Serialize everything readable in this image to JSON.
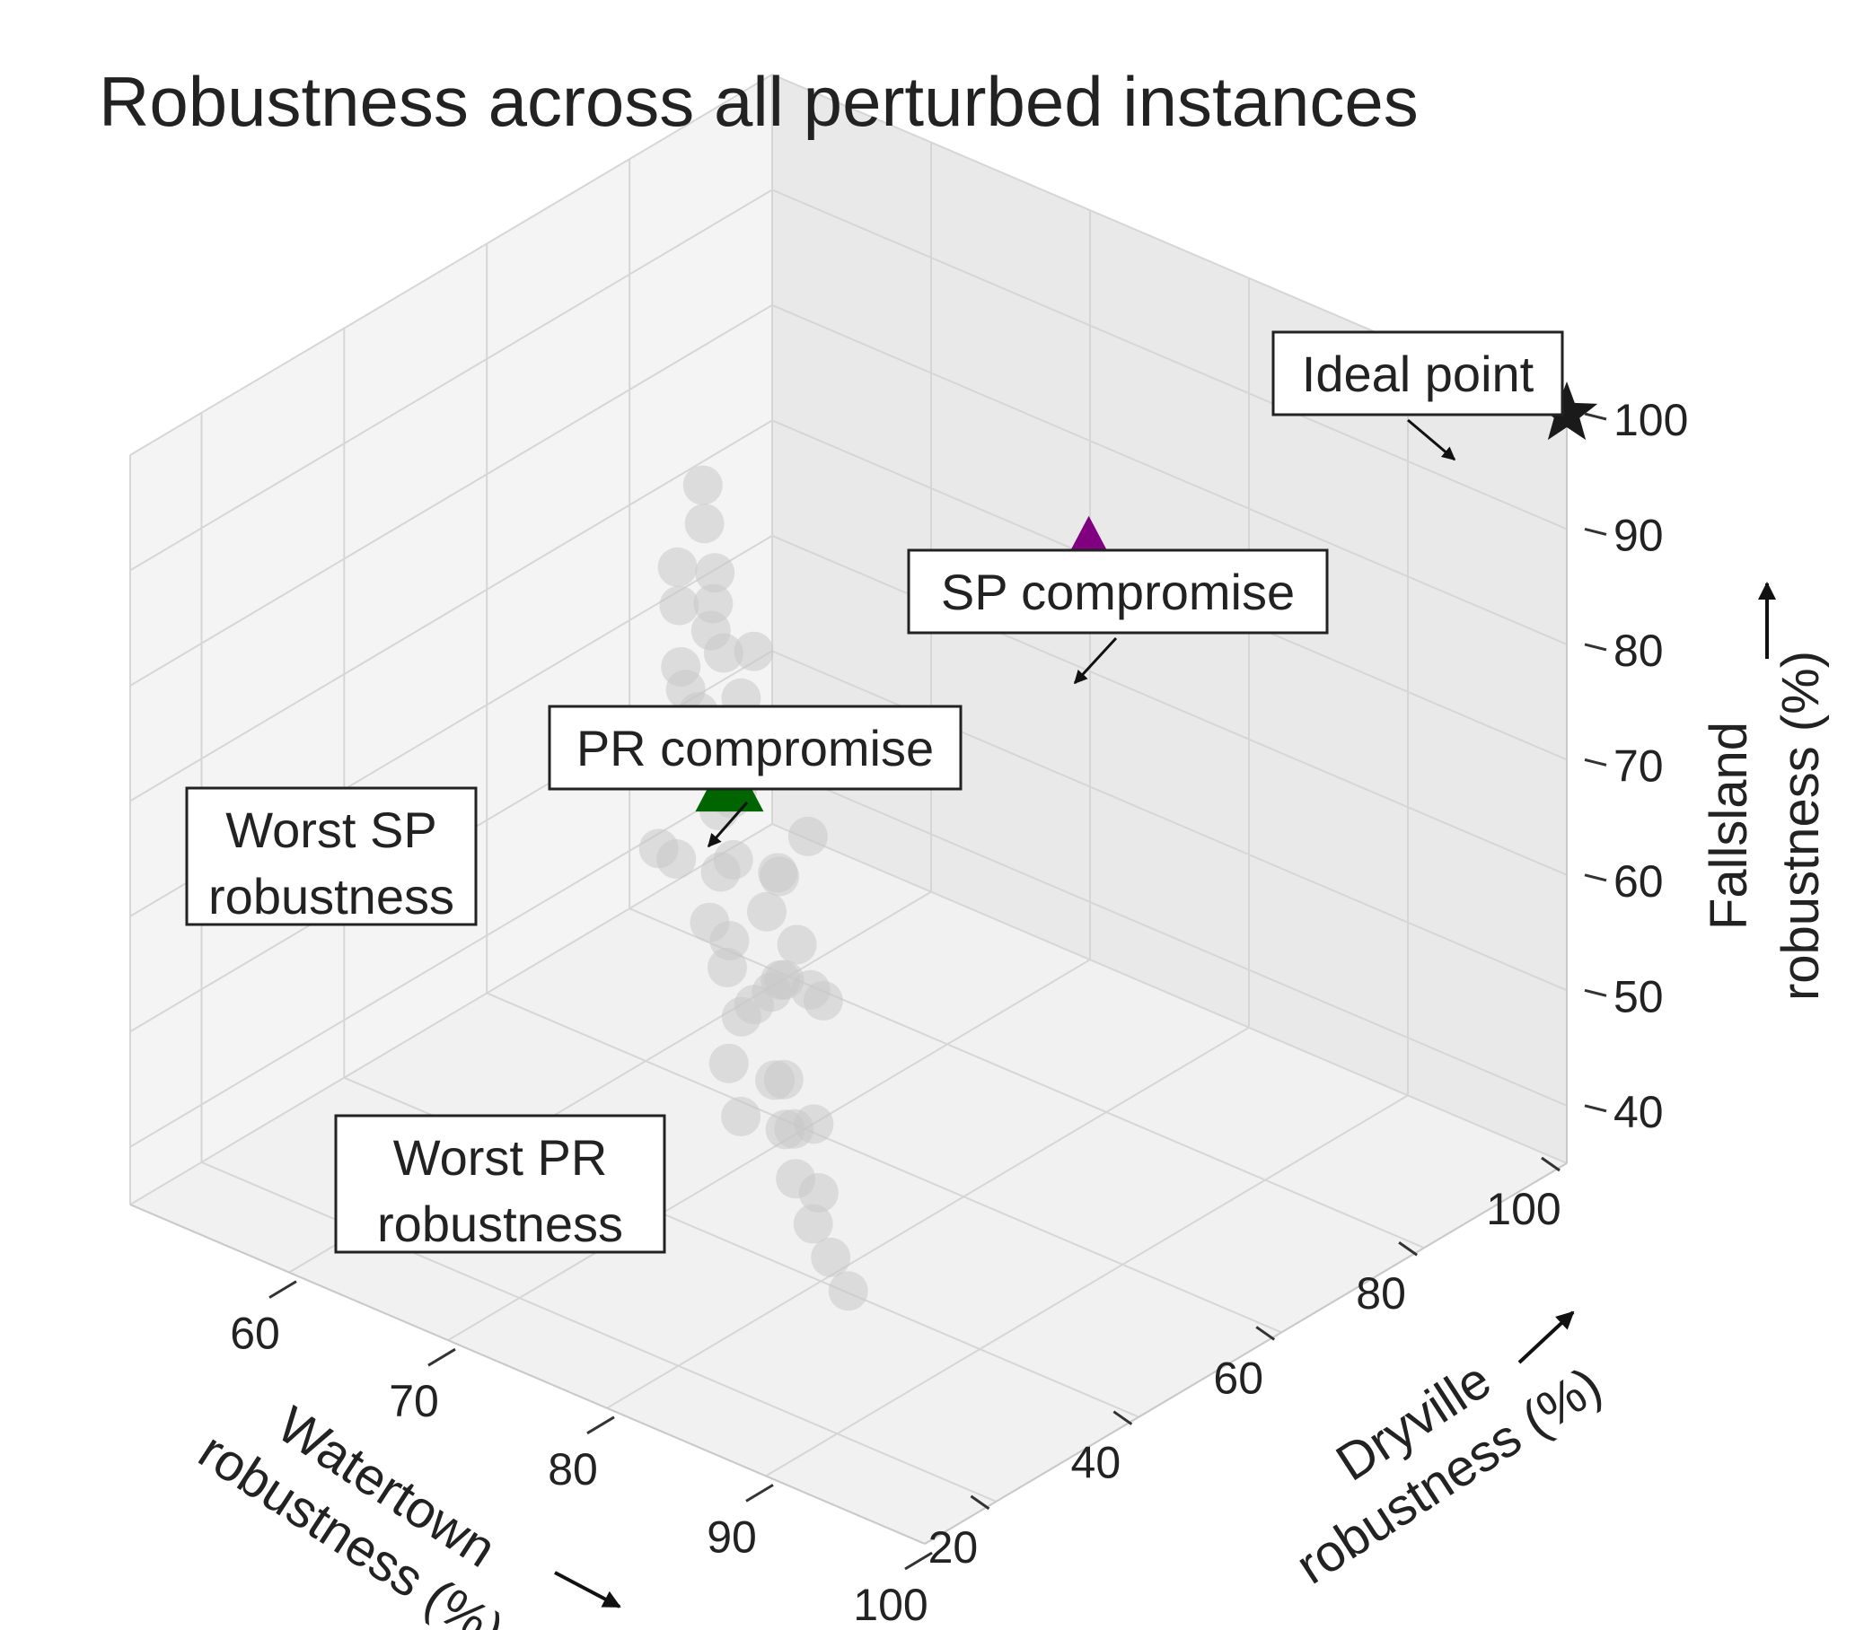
{
  "chart_data": {
    "type": "scatter",
    "title": "Robustness across all perturbed instances",
    "xlabel": [
      "Watertown",
      "robustness (%)"
    ],
    "ylabel": [
      "Dryville",
      "robustness (%)"
    ],
    "zlabel": [
      "Fallsland",
      "robustness (%)"
    ],
    "xlim": [
      50,
      100
    ],
    "ylim": [
      10,
      100
    ],
    "zlim": [
      35,
      100
    ],
    "x_ticks": [
      "60",
      "70",
      "80",
      "90",
      "100"
    ],
    "y_ticks": [
      "20",
      "40",
      "60",
      "80",
      "100"
    ],
    "z_ticks": [
      "40",
      "50",
      "60",
      "70",
      "80",
      "90",
      "100"
    ],
    "grid": true,
    "projection": "3d",
    "series": [
      {
        "marker": "circle",
        "color": "#c8c8c8",
        "points": [
          {
            "x": 72,
            "y": 45,
            "z": 58
          },
          {
            "x": 70,
            "y": 50,
            "z": 62
          },
          {
            "x": 75,
            "y": 40,
            "z": 55
          },
          {
            "x": 68,
            "y": 55,
            "z": 65
          },
          {
            "x": 78,
            "y": 38,
            "z": 52
          },
          {
            "x": 66,
            "y": 60,
            "z": 70
          },
          {
            "x": 80,
            "y": 35,
            "z": 50
          },
          {
            "x": 64,
            "y": 62,
            "z": 72
          },
          {
            "x": 73,
            "y": 48,
            "z": 60
          },
          {
            "x": 69,
            "y": 52,
            "z": 66
          },
          {
            "x": 76,
            "y": 42,
            "z": 57
          },
          {
            "x": 62,
            "y": 65,
            "z": 74
          },
          {
            "x": 82,
            "y": 32,
            "z": 48
          },
          {
            "x": 71,
            "y": 46,
            "z": 63
          },
          {
            "x": 74,
            "y": 44,
            "z": 54
          },
          {
            "x": 67,
            "y": 57,
            "z": 68
          },
          {
            "x": 79,
            "y": 37,
            "z": 53
          },
          {
            "x": 65,
            "y": 58,
            "z": 76
          },
          {
            "x": 77,
            "y": 41,
            "z": 59
          },
          {
            "x": 63,
            "y": 63,
            "z": 78
          },
          {
            "x": 84,
            "y": 30,
            "z": 46
          },
          {
            "x": 70,
            "y": 48,
            "z": 67
          },
          {
            "x": 72,
            "y": 52,
            "z": 61
          },
          {
            "x": 68,
            "y": 44,
            "z": 64
          },
          {
            "x": 81,
            "y": 34,
            "z": 51
          },
          {
            "x": 61,
            "y": 66,
            "z": 80
          },
          {
            "x": 75,
            "y": 46,
            "z": 56
          },
          {
            "x": 66,
            "y": 54,
            "z": 71
          },
          {
            "x": 78,
            "y": 43,
            "z": 58
          },
          {
            "x": 60,
            "y": 68,
            "z": 82
          },
          {
            "x": 86,
            "y": 28,
            "z": 45
          },
          {
            "x": 73,
            "y": 40,
            "z": 62
          },
          {
            "x": 69,
            "y": 58,
            "z": 69
          },
          {
            "x": 76,
            "y": 36,
            "z": 53
          },
          {
            "x": 64,
            "y": 56,
            "z": 73
          },
          {
            "x": 80,
            "y": 39,
            "z": 49
          },
          {
            "x": 71,
            "y": 54,
            "z": 60
          },
          {
            "x": 67,
            "y": 50,
            "z": 75
          },
          {
            "x": 74,
            "y": 50,
            "z": 57
          },
          {
            "x": 83,
            "y": 33,
            "z": 47
          },
          {
            "x": 62,
            "y": 60,
            "z": 79
          },
          {
            "x": 77,
            "y": 47,
            "z": 55
          },
          {
            "x": 65,
            "y": 64,
            "z": 72
          },
          {
            "x": 79,
            "y": 31,
            "z": 52
          },
          {
            "x": 70,
            "y": 42,
            "z": 65
          },
          {
            "x": 88,
            "y": 26,
            "z": 44
          },
          {
            "x": 72,
            "y": 56,
            "z": 63
          },
          {
            "x": 68,
            "y": 48,
            "z": 70
          },
          {
            "x": 75,
            "y": 38,
            "z": 60
          },
          {
            "x": 63,
            "y": 58,
            "z": 77
          }
        ]
      }
    ],
    "markers": [
      {
        "label": "Ideal point",
        "shape": "star",
        "color": "#1a1a1a",
        "x": 100,
        "y": 100,
        "z": 100
      },
      {
        "label": "SP compromise",
        "shape": "triangle",
        "color": "#800080",
        "x": 78,
        "y": 82,
        "z": 82
      },
      {
        "label": "PR compromise",
        "shape": "triangle",
        "color": "#006400",
        "x": 72,
        "y": 45,
        "z": 72
      }
    ],
    "annotations": [
      {
        "text": [
          "Ideal point"
        ]
      },
      {
        "text": [
          "SP compromise"
        ]
      },
      {
        "text": [
          "PR compromise"
        ]
      },
      {
        "text": [
          "Worst SP",
          "robustness"
        ]
      },
      {
        "text": [
          "Worst PR",
          "robustness"
        ]
      }
    ]
  }
}
